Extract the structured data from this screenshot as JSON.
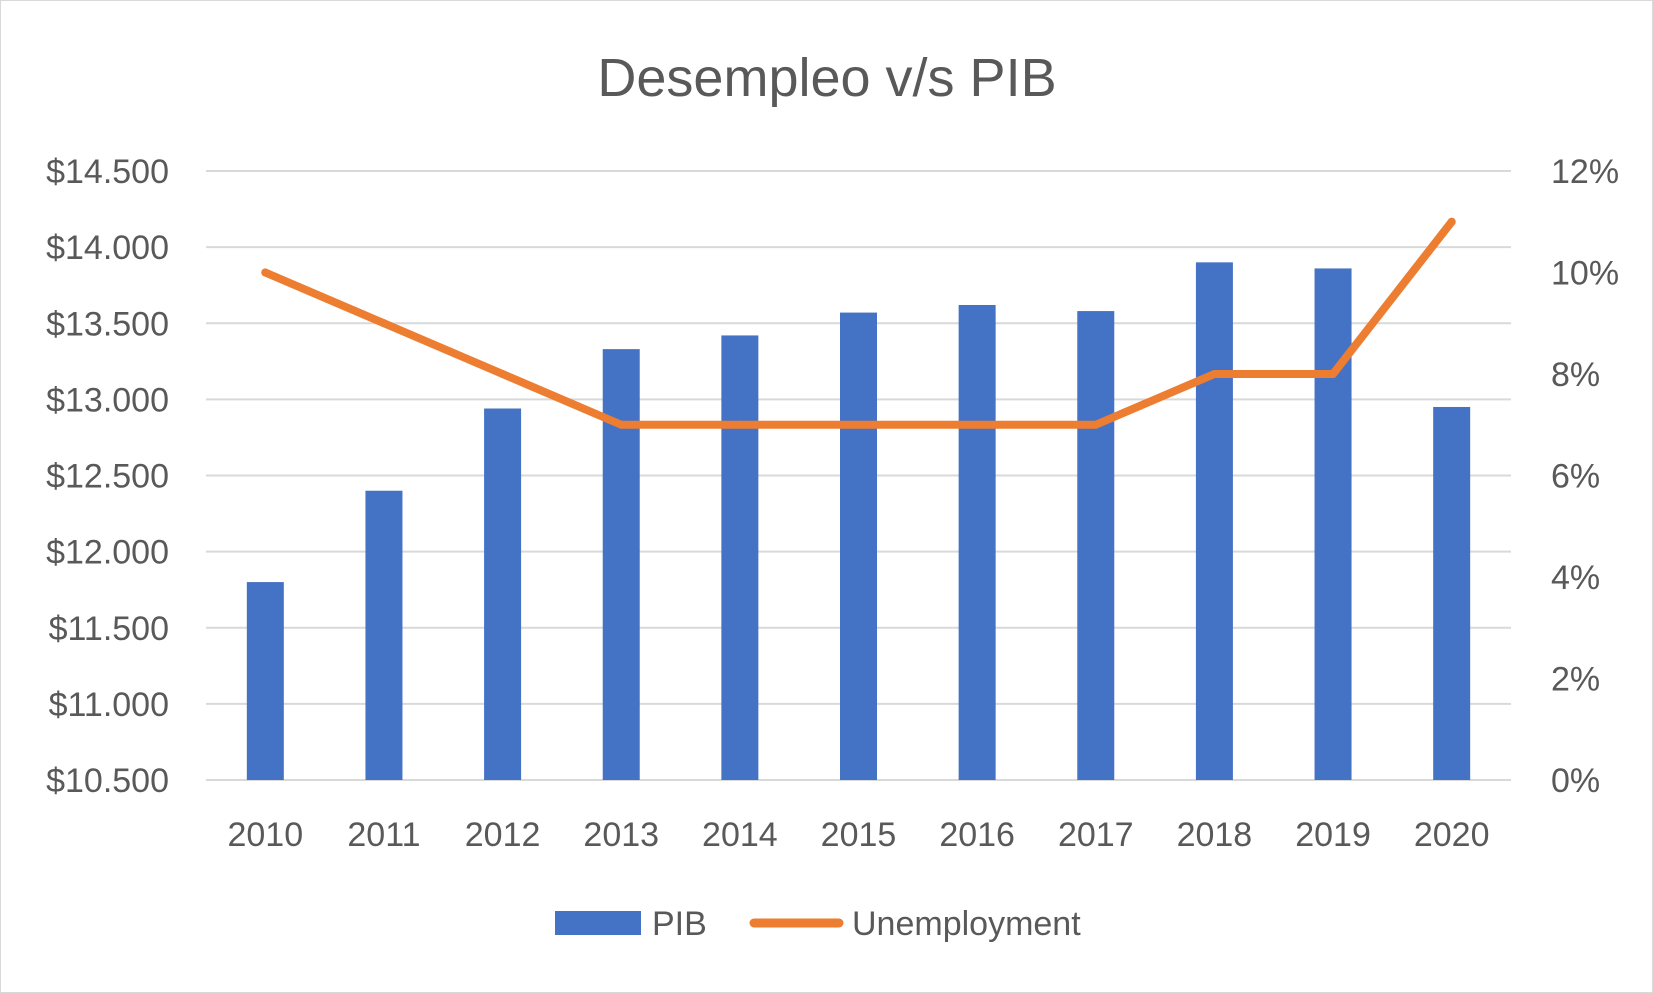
{
  "chart_data": {
    "type": "bar",
    "title": "Desempleo v/s PIB",
    "categories": [
      "2010",
      "2011",
      "2012",
      "2013",
      "2014",
      "2015",
      "2016",
      "2017",
      "2018",
      "2019",
      "2020"
    ],
    "series": [
      {
        "name": "PIB",
        "type": "bar",
        "axis": "left",
        "color": "#4472c4",
        "values": [
          11800,
          12400,
          12940,
          13330,
          13420,
          13570,
          13620,
          13580,
          13900,
          13860,
          12950
        ]
      },
      {
        "name": "Unemployment",
        "type": "line",
        "axis": "right",
        "color": "#ed7d31",
        "values": [
          0.1,
          0.09,
          0.08,
          0.07,
          0.07,
          0.07,
          0.07,
          0.07,
          0.08,
          0.08,
          0.11
        ]
      }
    ],
    "left_axis": {
      "ylim": [
        10500,
        14500
      ],
      "ticks": [
        10500,
        11000,
        11500,
        12000,
        12500,
        13000,
        13500,
        14000,
        14500
      ],
      "tick_labels": [
        "$10.500",
        "$11.000",
        "$11.500",
        "$12.000",
        "$12.500",
        "$13.000",
        "$13.500",
        "$14.000",
        "$14.500"
      ]
    },
    "right_axis": {
      "ylim": [
        0,
        0.12
      ],
      "ticks": [
        0,
        0.02,
        0.04,
        0.06,
        0.08,
        0.1,
        0.12
      ],
      "tick_labels": [
        "0%",
        "2%",
        "4%",
        "6%",
        "8%",
        "10%",
        "12%"
      ]
    },
    "grid": true,
    "legend_position": "bottom",
    "legend": [
      {
        "label": "PIB",
        "marker": "bar",
        "color": "#4472c4"
      },
      {
        "label": "Unemployment",
        "marker": "line",
        "color": "#ed7d31"
      }
    ],
    "gridline_color": "#d9d9d9",
    "text_color": "#595959"
  }
}
